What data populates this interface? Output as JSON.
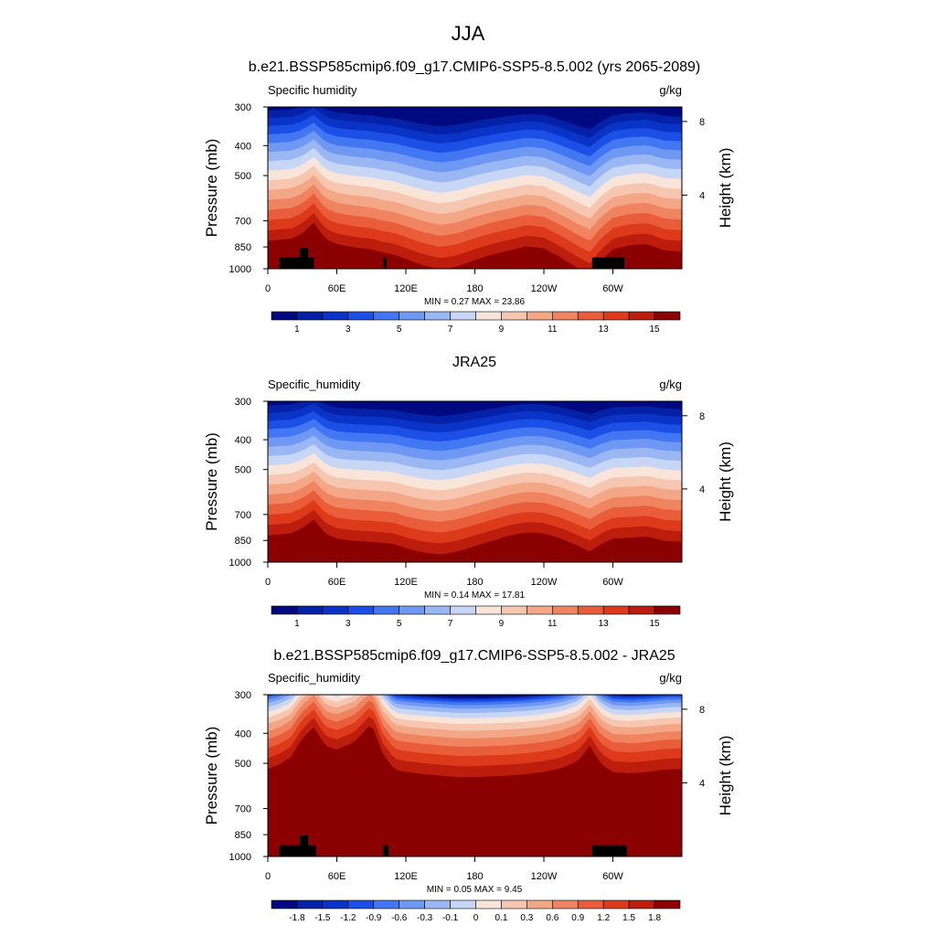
{
  "figure_title": "JJA",
  "chart_data": [
    {
      "type": "heatmap",
      "panel": "model",
      "title": "b.e21.BSSP585cmip6.f09_g17.CMIP6-SSP5-8.5.002 (yrs 2065-2089)",
      "left_label": "Specific humidity",
      "right_label": "g/kg",
      "ylabel": "Pressure (mb)",
      "y2label": "Height (km)",
      "x_ticks": [
        "0",
        "60E",
        "120E",
        "180",
        "120W",
        "60W"
      ],
      "x_tick_values": [
        0,
        60,
        120,
        180,
        240,
        300
      ],
      "xlim": [
        0,
        360
      ],
      "y_ticks": [
        "300",
        "400",
        "500",
        "700",
        "850",
        "1000"
      ],
      "y_tick_values": [
        300,
        400,
        500,
        700,
        850,
        1000
      ],
      "ylim": [
        1000,
        300
      ],
      "y2_ticks": [
        "8",
        "4"
      ],
      "y2_tick_values": [
        8,
        4
      ],
      "min_label": "MIN =   0.27  MAX =  23.86",
      "min": 0.27,
      "max": 23.86,
      "colorbar_labels": [
        "1",
        "3",
        "5",
        "7",
        "9",
        "11",
        "13",
        "15"
      ],
      "levels": [
        1,
        2,
        3,
        4,
        5,
        6,
        7,
        8,
        9,
        10,
        11,
        12,
        13,
        14,
        15,
        16
      ],
      "profile": {
        "lon": [
          0,
          10,
          20,
          30,
          40,
          50,
          60,
          75,
          90,
          100,
          110,
          120,
          135,
          150,
          165,
          180,
          195,
          210,
          225,
          240,
          255,
          270,
          280,
          290,
          300,
          315,
          330,
          345,
          360
        ],
        "shift": [
          -8,
          -10,
          -12,
          -22,
          -42,
          -12,
          -2,
          4,
          8,
          14,
          18,
          26,
          38,
          46,
          40,
          28,
          18,
          10,
          2,
          6,
          24,
          44,
          56,
          28,
          8,
          0,
          -2,
          10,
          12
        ]
      },
      "topography": [
        {
          "lon0": 10,
          "lon1": 40,
          "p": 920
        },
        {
          "lon0": 28,
          "lon1": 35,
          "p": 855
        },
        {
          "lon0": 100,
          "lon1": 103,
          "p": 920
        },
        {
          "lon0": 282,
          "lon1": 310,
          "p": 920
        }
      ]
    },
    {
      "type": "heatmap",
      "panel": "obs",
      "title": "JRA25",
      "left_label": "Specific_humidity",
      "right_label": "g/kg",
      "ylabel": "Pressure (mb)",
      "y2label": "Height (km)",
      "x_ticks": [
        "0",
        "60E",
        "120E",
        "180",
        "120W",
        "60W"
      ],
      "x_tick_values": [
        0,
        60,
        120,
        180,
        240,
        300
      ],
      "xlim": [
        0,
        360
      ],
      "y_ticks": [
        "300",
        "400",
        "500",
        "700",
        "850",
        "1000"
      ],
      "y_tick_values": [
        300,
        400,
        500,
        700,
        850,
        1000
      ],
      "ylim": [
        1000,
        300
      ],
      "y2_ticks": [
        "8",
        "4"
      ],
      "y2_tick_values": [
        8,
        4
      ],
      "min_label": "MIN =   0.14  MAX =  17.81",
      "min": 0.14,
      "max": 17.81,
      "colorbar_labels": [
        "1",
        "3",
        "5",
        "7",
        "9",
        "11",
        "13",
        "15"
      ],
      "levels": [
        1,
        2,
        3,
        4,
        5,
        6,
        7,
        8,
        9,
        10,
        11,
        12,
        13,
        14,
        15,
        16
      ],
      "profile": {
        "lon": [
          0,
          10,
          20,
          30,
          40,
          50,
          60,
          75,
          90,
          100,
          110,
          120,
          135,
          150,
          165,
          180,
          195,
          210,
          225,
          240,
          255,
          270,
          280,
          290,
          300,
          315,
          330,
          345,
          360
        ],
        "shift": [
          -6,
          -8,
          -10,
          -20,
          -36,
          -10,
          0,
          4,
          6,
          8,
          10,
          18,
          26,
          30,
          24,
          14,
          4,
          -6,
          -12,
          -10,
          0,
          14,
          24,
          10,
          0,
          -2,
          -4,
          4,
          6
        ]
      },
      "topography": []
    },
    {
      "type": "heatmap",
      "panel": "difference",
      "title": "b.e21.BSSP585cmip6.f09_g17.CMIP6-SSP5-8.5.002 - JRA25",
      "left_label": "Specific_humidity",
      "right_label": "g/kg",
      "ylabel": "Pressure (mb)",
      "y2label": "Height (km)",
      "x_ticks": [
        "0",
        "60E",
        "120E",
        "180",
        "120W",
        "60W"
      ],
      "x_tick_values": [
        0,
        60,
        120,
        180,
        240,
        300
      ],
      "xlim": [
        0,
        360
      ],
      "y_ticks": [
        "300",
        "400",
        "500",
        "700",
        "850",
        "1000"
      ],
      "y_tick_values": [
        300,
        400,
        500,
        700,
        850,
        1000
      ],
      "ylim": [
        1000,
        300
      ],
      "y2_ticks": [
        "8",
        "4"
      ],
      "y2_tick_values": [
        8,
        4
      ],
      "min_label": "MIN =   0.05  MAX =   9.45",
      "min": 0.05,
      "max": 9.45,
      "colorbar_labels": [
        "-1.8",
        "-1.5",
        "-1.2",
        "-0.9",
        "-0.6",
        "-0.3",
        "-0.1",
        "0",
        "0.1",
        "0.3",
        "0.6",
        "0.9",
        "1.2",
        "1.5",
        "1.8"
      ],
      "levels": [
        -1.8,
        -1.5,
        -1.2,
        -0.9,
        -0.6,
        -0.3,
        -0.1,
        0,
        0.1,
        0.3,
        0.6,
        0.9,
        1.2,
        1.5,
        1.8
      ],
      "profile": {
        "lon": [
          0,
          10,
          20,
          30,
          40,
          50,
          60,
          75,
          90,
          100,
          110,
          120,
          135,
          150,
          165,
          180,
          195,
          210,
          225,
          240,
          255,
          270,
          280,
          290,
          300,
          315,
          330,
          345,
          360
        ],
        "shift": [
          -8,
          -20,
          -40,
          -90,
          -120,
          -70,
          -60,
          -80,
          -130,
          -50,
          -6,
          0,
          6,
          10,
          14,
          14,
          12,
          10,
          6,
          0,
          -10,
          -30,
          -70,
          -20,
          0,
          4,
          0,
          -6,
          -8
        ]
      },
      "topography": [
        {
          "lon0": 10,
          "lon1": 42,
          "p": 920
        },
        {
          "lon0": 28,
          "lon1": 35,
          "p": 855
        },
        {
          "lon0": 100,
          "lon1": 105,
          "p": 920
        },
        {
          "lon0": 282,
          "lon1": 312,
          "p": 920
        }
      ]
    }
  ],
  "colormap": [
    "#000a80",
    "#0521a8",
    "#0a34c8",
    "#1c4fe6",
    "#4276f2",
    "#6e98f4",
    "#9ab7f4",
    "#c6d6f4",
    "#f8e4d8",
    "#f7c6b1",
    "#f4a787",
    "#f08460",
    "#ea5d3a",
    "#dd3a1c",
    "#bd1d0c",
    "#8b0000"
  ],
  "topography_color": "#000000"
}
